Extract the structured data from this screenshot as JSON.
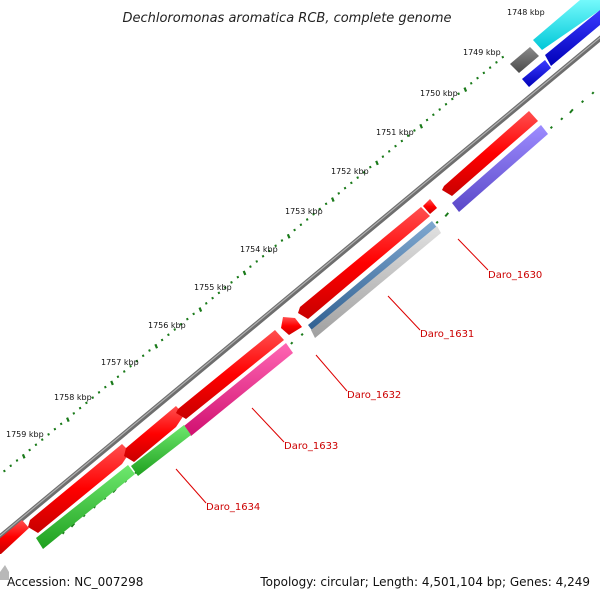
{
  "title": "Dechloromonas aromatica RCB, complete genome",
  "ruler": {
    "unit_suffix": " kbp",
    "ticks": [
      {
        "label": "1748 kbp"
      },
      {
        "label": "1749 kbp"
      },
      {
        "label": "1750 kbp"
      },
      {
        "label": "1751 kbp"
      },
      {
        "label": "1752 kbp"
      },
      {
        "label": "1753 kbp"
      },
      {
        "label": "1754 kbp"
      },
      {
        "label": "1755 kbp"
      },
      {
        "label": "1756 kbp"
      },
      {
        "label": "1757 kbp"
      },
      {
        "label": "1758 kbp"
      },
      {
        "label": "1759 kbp"
      }
    ]
  },
  "gene_labels": {
    "g1630": "Daro_1630",
    "g1631": "Daro_1631",
    "g1632": "Daro_1632",
    "g1633": "Daro_1633",
    "g1634": "Daro_1634"
  },
  "colors": {
    "backbone": "#8c8c8c",
    "cds": "#ff0000",
    "tick_green": "#1a7a1a",
    "label_red": "#cc0000",
    "cyan": "#00ffff",
    "blue": "#0000ee",
    "grey": "#666666",
    "purple": "#7b68ee",
    "steelblue": "#4682b4",
    "lightgrey": "#c0c0c0",
    "magenta": "#ff1493",
    "green": "#32cd32"
  },
  "footer": {
    "accession": "Accession: NC_007298",
    "summary": "Topology: circular; Length: 4,501,104 bp; Genes: 4,249"
  }
}
